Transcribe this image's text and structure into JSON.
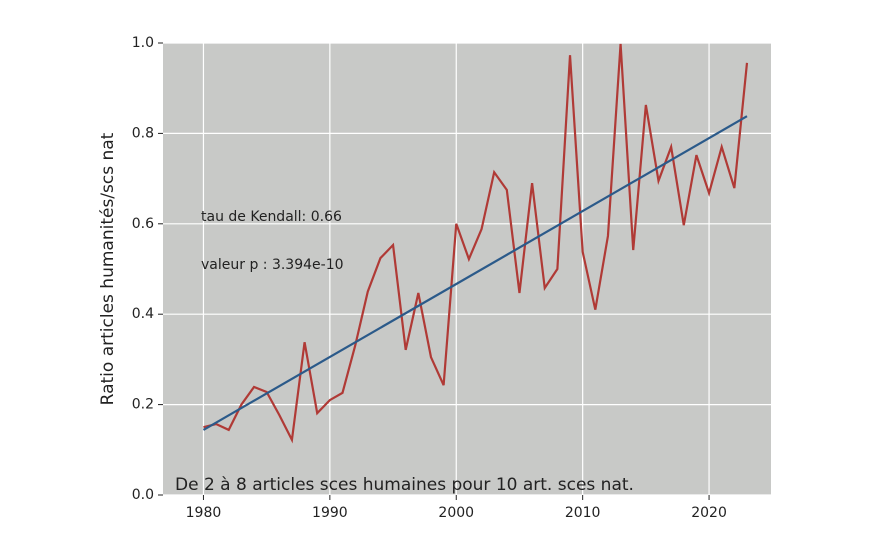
{
  "chart_data": {
    "type": "line",
    "ylabel": "Ratio articles humanités/scs nat",
    "annotations": [
      "tau de Kendall: 0.66",
      "valeur p : 3.394e-10",
      "De 2 à 8 articles sces humaines pour 10 art. sces nat."
    ],
    "x": [
      1980,
      1981,
      1982,
      1983,
      1984,
      1985,
      1986,
      1987,
      1988,
      1989,
      1990,
      1991,
      1992,
      1993,
      1994,
      1995,
      1996,
      1997,
      1998,
      1999,
      2000,
      2001,
      2002,
      2003,
      2004,
      2005,
      2006,
      2007,
      2008,
      2009,
      2010,
      2011,
      2012,
      2013,
      2014,
      2015,
      2016,
      2017,
      2018,
      2019,
      2020,
      2021,
      2022,
      2023
    ],
    "values": [
      0.15,
      0.157,
      0.144,
      0.2,
      0.239,
      0.228,
      0.177,
      0.122,
      0.338,
      0.181,
      0.21,
      0.226,
      0.33,
      0.45,
      0.524,
      0.553,
      0.321,
      0.447,
      0.305,
      0.243,
      0.6,
      0.522,
      0.588,
      0.714,
      0.675,
      0.447,
      0.69,
      0.458,
      0.5,
      0.973,
      0.538,
      0.41,
      0.573,
      0.998,
      0.542,
      0.863,
      0.695,
      0.77,
      0.597,
      0.752,
      0.668,
      0.77,
      0.679,
      0.956
    ],
    "color": "#b03a36",
    "trend": {
      "x": [
        1980,
        2023
      ],
      "values": [
        0.144,
        0.838
      ],
      "color": "#2b5a8a"
    },
    "xlim": [
      1976.8,
      2024.9
    ],
    "ylim": [
      0,
      1
    ],
    "xticks": [
      1980,
      1990,
      2000,
      2010,
      2020
    ],
    "yticks": [
      {
        "value": 0,
        "label": "0.0"
      },
      0.2,
      0.4,
      0.6,
      0.8,
      {
        "value": 1,
        "label": "1.0"
      }
    ],
    "grid": true
  }
}
